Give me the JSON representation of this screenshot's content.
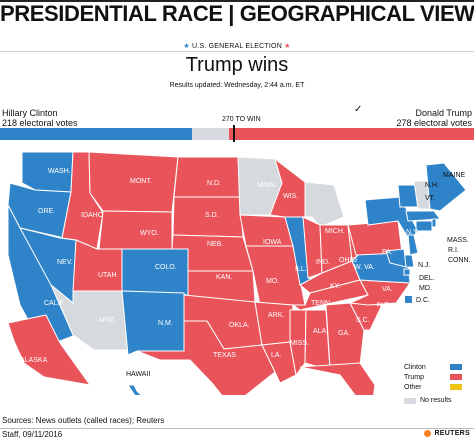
{
  "header": {
    "title": "PRESIDENTIAL RACE | GEOGRAPHICAL VIEW",
    "election_label": "U.S. GENERAL ELECTION",
    "headline": "Trump wins",
    "updated": "Results updated: Wednesday, 2:44 a.m. ET"
  },
  "tally": {
    "left_name": "Hillary Clinton",
    "left_votes": "218 electoral votes",
    "right_name": "Donald Trump",
    "right_votes": "278 electoral votes",
    "to_win": "270 TO WIN",
    "check": "✓",
    "clinton_ev": 218,
    "trump_ev": 278,
    "total_ev": 538
  },
  "map": {
    "states": [
      {
        "abbr": "WASH.",
        "party": "clinton"
      },
      {
        "abbr": "ORE.",
        "party": "clinton"
      },
      {
        "abbr": "CALIF.",
        "party": "clinton"
      },
      {
        "abbr": "NEV.",
        "party": "clinton"
      },
      {
        "abbr": "IDAHO",
        "party": "trump"
      },
      {
        "abbr": "MONT.",
        "party": "trump"
      },
      {
        "abbr": "WYO.",
        "party": "trump"
      },
      {
        "abbr": "UTAH",
        "party": "trump"
      },
      {
        "abbr": "ARIZ.",
        "party": "no_results"
      },
      {
        "abbr": "COLO.",
        "party": "clinton"
      },
      {
        "abbr": "N.M.",
        "party": "clinton"
      },
      {
        "abbr": "N.D.",
        "party": "trump"
      },
      {
        "abbr": "S.D.",
        "party": "trump"
      },
      {
        "abbr": "NEB.",
        "party": "trump"
      },
      {
        "abbr": "KAN.",
        "party": "trump"
      },
      {
        "abbr": "OKLA.",
        "party": "trump"
      },
      {
        "abbr": "TEXAS",
        "party": "trump"
      },
      {
        "abbr": "MINN.",
        "party": "no_results"
      },
      {
        "abbr": "IOWA",
        "party": "trump"
      },
      {
        "abbr": "MO.",
        "party": "trump"
      },
      {
        "abbr": "ARK.",
        "party": "trump"
      },
      {
        "abbr": "LA.",
        "party": "trump"
      },
      {
        "abbr": "WIS.",
        "party": "trump"
      },
      {
        "abbr": "ILL.",
        "party": "clinton"
      },
      {
        "abbr": "MICH.",
        "party": "no_results"
      },
      {
        "abbr": "IND.",
        "party": "trump"
      },
      {
        "abbr": "OHIO",
        "party": "trump"
      },
      {
        "abbr": "KY.",
        "party": "trump"
      },
      {
        "abbr": "TENN.",
        "party": "trump"
      },
      {
        "abbr": "MISS.",
        "party": "trump"
      },
      {
        "abbr": "ALA.",
        "party": "trump"
      },
      {
        "abbr": "GA.",
        "party": "trump"
      },
      {
        "abbr": "FLA.",
        "party": "trump"
      },
      {
        "abbr": "S.C.",
        "party": "trump"
      },
      {
        "abbr": "N.C.",
        "party": "trump"
      },
      {
        "abbr": "VA.",
        "party": "clinton"
      },
      {
        "abbr": "W. VA.",
        "party": "trump"
      },
      {
        "abbr": "PA.",
        "party": "trump"
      },
      {
        "abbr": "N.Y.",
        "party": "clinton"
      },
      {
        "abbr": "VT.",
        "party": "clinton"
      },
      {
        "abbr": "N.H.",
        "party": "no_results"
      },
      {
        "abbr": "MAINE",
        "party": "clinton"
      },
      {
        "abbr": "MASS.",
        "party": "clinton"
      },
      {
        "abbr": "R.I.",
        "party": "clinton"
      },
      {
        "abbr": "CONN.",
        "party": "clinton"
      },
      {
        "abbr": "N.J.",
        "party": "clinton"
      },
      {
        "abbr": "DEL.",
        "party": "clinton"
      },
      {
        "abbr": "MD.",
        "party": "clinton"
      },
      {
        "abbr": "D.C.",
        "party": "clinton"
      },
      {
        "abbr": "ALASKA",
        "party": "trump"
      },
      {
        "abbr": "HAWAII",
        "party": "clinton"
      }
    ]
  },
  "legend": {
    "clinton": "Clinton",
    "trump": "Trump",
    "other": "Other",
    "no_results": "No results"
  },
  "colors": {
    "clinton": "#2f83c8",
    "trump": "#e9535a",
    "other": "#f2c417",
    "no_results": "#d6d9dd"
  },
  "footer": {
    "sources": "Sources: News outlets (called races); Reuters",
    "staff": "Staff, 09/11/2016",
    "logo": "REUTERS"
  }
}
